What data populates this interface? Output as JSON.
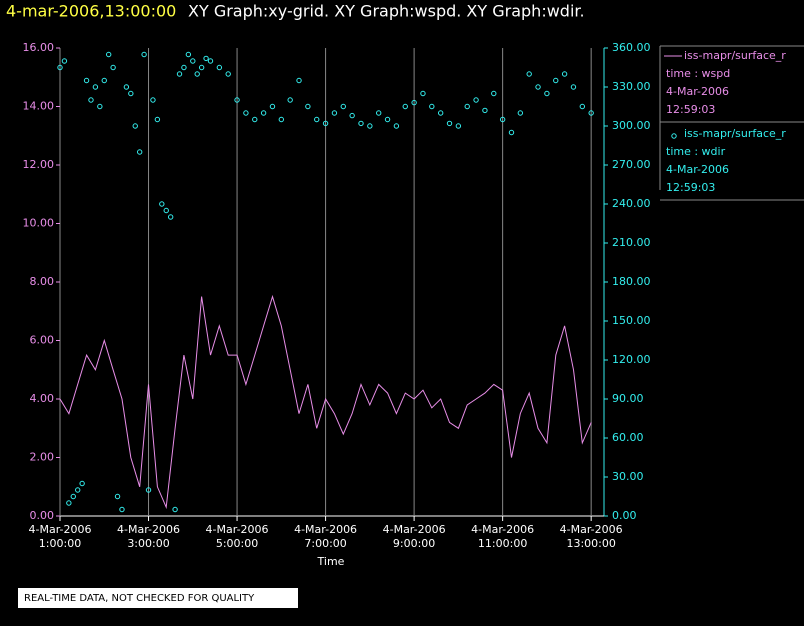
{
  "chart_data": {
    "type": "line",
    "title_time": "4-mar-2006,13:00:00",
    "title": "XY Graph:xy-grid.  XY Graph:wspd.  XY Graph:wdir.",
    "x_label": "Time",
    "note": "REAL-TIME DATA, NOT CHECKED FOR QUALITY",
    "xlim": [
      1,
      13.29
    ],
    "xticks": [
      {
        "value": 1,
        "label": [
          "4-Mar-2006",
          "1:00:00"
        ]
      },
      {
        "value": 3,
        "label": [
          "4-Mar-2006",
          "3:00:00"
        ]
      },
      {
        "value": 5,
        "label": [
          "4-Mar-2006",
          "5:00:00"
        ]
      },
      {
        "value": 7,
        "label": [
          "4-Mar-2006",
          "7:00:00"
        ]
      },
      {
        "value": 9,
        "label": [
          "4-Mar-2006",
          "9:00:00"
        ]
      },
      {
        "value": 11,
        "label": [
          "4-Mar-2006",
          "11:00:00"
        ]
      },
      {
        "value": 13,
        "label": [
          "4-Mar-2006",
          "13:00:00"
        ]
      }
    ],
    "ylim": [
      0,
      16
    ],
    "yticks": [
      {
        "value": 0,
        "label": "0.00"
      },
      {
        "value": 2,
        "label": "2.00"
      },
      {
        "value": 4,
        "label": "4.00"
      },
      {
        "value": 6,
        "label": "6.00"
      },
      {
        "value": 8,
        "label": "8.00"
      },
      {
        "value": 10,
        "label": "10.00"
      },
      {
        "value": 12,
        "label": "12.00"
      },
      {
        "value": 14,
        "label": "14.00"
      },
      {
        "value": 16,
        "label": "16.00"
      }
    ],
    "y2lim": [
      0,
      360
    ],
    "y2ticks": [
      {
        "value": 0,
        "label": "0.00"
      },
      {
        "value": 30,
        "label": "30.00"
      },
      {
        "value": 60,
        "label": "60.00"
      },
      {
        "value": 90,
        "label": "90.00"
      },
      {
        "value": 120,
        "label": "120.00"
      },
      {
        "value": 150,
        "label": "150.00"
      },
      {
        "value": 180,
        "label": "180.00"
      },
      {
        "value": 210,
        "label": "210.00"
      },
      {
        "value": 240,
        "label": "240.00"
      },
      {
        "value": 270,
        "label": "270.00"
      },
      {
        "value": 300,
        "label": "300.00"
      },
      {
        "value": 330,
        "label": "330.00"
      },
      {
        "value": 360,
        "label": "360.00"
      }
    ],
    "grid": true,
    "series": [
      {
        "name": "iss-mapr/surface_r",
        "variable": "time : wspd",
        "date": "4-Mar-2006",
        "time": "12:59:03",
        "type": "line",
        "axis": "y",
        "color": "#e88ee8",
        "x": [
          1.0,
          1.2,
          1.4,
          1.6,
          1.8,
          2.0,
          2.2,
          2.4,
          2.6,
          2.8,
          3.0,
          3.2,
          3.4,
          3.6,
          3.8,
          4.0,
          4.2,
          4.4,
          4.6,
          4.8,
          5.0,
          5.2,
          5.4,
          5.6,
          5.8,
          6.0,
          6.2,
          6.4,
          6.6,
          6.8,
          7.0,
          7.2,
          7.4,
          7.6,
          7.8,
          8.0,
          8.2,
          8.4,
          8.6,
          8.8,
          9.0,
          9.2,
          9.4,
          9.6,
          9.8,
          10.0,
          10.2,
          10.4,
          10.6,
          10.8,
          11.0,
          11.2,
          11.4,
          11.6,
          11.8,
          12.0,
          12.2,
          12.4,
          12.6,
          12.8,
          13.0
        ],
        "values": [
          4.0,
          3.5,
          4.5,
          5.5,
          5.0,
          6.0,
          5.0,
          4.0,
          2.0,
          1.0,
          4.5,
          1.0,
          0.3,
          3.0,
          5.5,
          4.0,
          7.5,
          5.5,
          6.5,
          5.5,
          5.5,
          4.5,
          5.5,
          6.5,
          7.5,
          6.5,
          5.0,
          3.5,
          4.5,
          3.0,
          4.0,
          3.5,
          2.8,
          3.5,
          4.5,
          3.8,
          4.5,
          4.2,
          3.5,
          4.2,
          4.0,
          4.3,
          3.7,
          4.0,
          3.2,
          3.0,
          3.8,
          4.0,
          4.2,
          4.5,
          4.3,
          2.0,
          3.5,
          4.2,
          3.0,
          2.5,
          5.5,
          6.5,
          5.0,
          2.5,
          3.2
        ]
      },
      {
        "name": "iss-mapr/surface_r",
        "variable": "time : wdir",
        "date": "4-Mar-2006",
        "time": "12:59:03",
        "type": "scatter",
        "axis": "y2",
        "color": "#33eeee",
        "x": [
          1.0,
          1.1,
          1.2,
          1.3,
          1.4,
          1.5,
          1.6,
          1.7,
          1.8,
          1.9,
          2.0,
          2.1,
          2.2,
          2.3,
          2.4,
          2.5,
          2.6,
          2.7,
          2.8,
          2.9,
          3.0,
          3.1,
          3.2,
          3.3,
          3.4,
          3.5,
          3.6,
          3.7,
          3.8,
          3.9,
          4.0,
          4.1,
          4.2,
          4.3,
          4.4,
          4.6,
          4.8,
          5.0,
          5.2,
          5.4,
          5.6,
          5.8,
          6.0,
          6.2,
          6.4,
          6.6,
          6.8,
          7.0,
          7.2,
          7.4,
          7.6,
          7.8,
          8.0,
          8.2,
          8.4,
          8.6,
          8.8,
          9.0,
          9.2,
          9.4,
          9.6,
          9.8,
          10.0,
          10.2,
          10.4,
          10.6,
          10.8,
          11.0,
          11.2,
          11.4,
          11.6,
          11.8,
          12.0,
          12.2,
          12.4,
          12.6,
          12.8,
          13.0
        ],
        "values": [
          345,
          350,
          10,
          15,
          20,
          25,
          335,
          320,
          330,
          315,
          335,
          355,
          345,
          15,
          5,
          330,
          325,
          300,
          280,
          355,
          20,
          320,
          305,
          240,
          235,
          230,
          5,
          340,
          345,
          355,
          350,
          340,
          345,
          352,
          350,
          345,
          340,
          320,
          310,
          305,
          310,
          315,
          305,
          320,
          335,
          315,
          305,
          302,
          310,
          315,
          308,
          302,
          300,
          310,
          305,
          300,
          315,
          318,
          325,
          315,
          310,
          302,
          300,
          315,
          320,
          312,
          325,
          305,
          295,
          310,
          340,
          330,
          325,
          335,
          340,
          330,
          315,
          310
        ]
      }
    ]
  }
}
